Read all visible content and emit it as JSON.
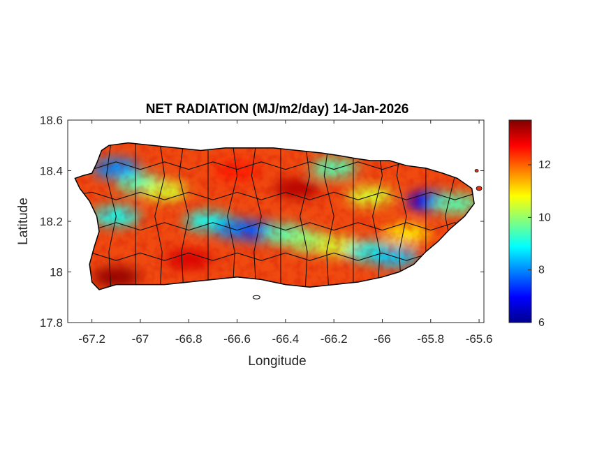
{
  "chart_data": {
    "type": "heatmap",
    "title": "NET RADIATION (MJ/m2/day) 14-Jan-2026",
    "xlabel": "Longitude",
    "ylabel": "Latitude",
    "xlim": [
      -67.3,
      -65.58
    ],
    "ylim": [
      17.8,
      18.6
    ],
    "xticks": [
      -67.2,
      -67.0,
      -66.8,
      -66.6,
      -66.4,
      -66.2,
      -66.0,
      -65.8,
      -65.6
    ],
    "xtick_labels": [
      "-67.2",
      "-67",
      "-66.8",
      "-66.6",
      "-66.4",
      "-66.2",
      "-66",
      "-65.8",
      "-65.6"
    ],
    "yticks": [
      17.8,
      18.0,
      18.2,
      18.4,
      18.6
    ],
    "ytick_labels": [
      "17.8",
      "18",
      "18.2",
      "18.4",
      "18.6"
    ],
    "colorbar": {
      "colormap": "jet",
      "range": [
        6,
        13.7
      ],
      "ticks": [
        6,
        8,
        10,
        12
      ],
      "tick_labels": [
        "6",
        "8",
        "10",
        "12"
      ]
    },
    "region": "Puerto Rico municipalities",
    "outline": [
      [
        -67.27,
        18.37
      ],
      [
        -67.24,
        18.38
      ],
      [
        -67.2,
        18.39
      ],
      [
        -67.18,
        18.43
      ],
      [
        -67.16,
        18.48
      ],
      [
        -67.13,
        18.5
      ],
      [
        -67.05,
        18.51
      ],
      [
        -66.95,
        18.5
      ],
      [
        -66.85,
        18.49
      ],
      [
        -66.75,
        18.48
      ],
      [
        -66.65,
        18.49
      ],
      [
        -66.55,
        18.49
      ],
      [
        -66.45,
        18.49
      ],
      [
        -66.35,
        18.48
      ],
      [
        -66.25,
        18.47
      ],
      [
        -66.18,
        18.46
      ],
      [
        -66.12,
        18.45
      ],
      [
        -66.05,
        18.44
      ],
      [
        -65.97,
        18.44
      ],
      [
        -65.9,
        18.42
      ],
      [
        -65.82,
        18.41
      ],
      [
        -65.75,
        18.39
      ],
      [
        -65.69,
        18.37
      ],
      [
        -65.63,
        18.33
      ],
      [
        -65.62,
        18.27
      ],
      [
        -65.66,
        18.22
      ],
      [
        -65.72,
        18.17
      ],
      [
        -65.77,
        18.12
      ],
      [
        -65.82,
        18.08
      ],
      [
        -65.87,
        18.03
      ],
      [
        -65.93,
        18.0
      ],
      [
        -66.0,
        17.98
      ],
      [
        -66.1,
        17.96
      ],
      [
        -66.2,
        17.95
      ],
      [
        -66.3,
        17.94
      ],
      [
        -66.4,
        17.95
      ],
      [
        -66.5,
        17.97
      ],
      [
        -66.6,
        17.98
      ],
      [
        -66.7,
        17.97
      ],
      [
        -66.8,
        17.96
      ],
      [
        -66.9,
        17.95
      ],
      [
        -67.0,
        17.95
      ],
      [
        -67.1,
        17.95
      ],
      [
        -67.17,
        17.93
      ],
      [
        -67.2,
        17.96
      ],
      [
        -67.21,
        18.03
      ],
      [
        -67.19,
        18.1
      ],
      [
        -67.17,
        18.16
      ],
      [
        -67.18,
        18.22
      ],
      [
        -67.21,
        18.28
      ],
      [
        -67.25,
        18.33
      ]
    ],
    "radiation_bands": [
      {
        "lon": -67.1,
        "lat": 18.41,
        "value": 8.0
      },
      {
        "lon": -67.0,
        "lat": 18.35,
        "value": 9.5
      },
      {
        "lon": -67.1,
        "lat": 18.22,
        "value": 9.0
      },
      {
        "lon": -66.9,
        "lat": 18.32,
        "value": 10.5
      },
      {
        "lon": -66.72,
        "lat": 18.2,
        "value": 9.0
      },
      {
        "lon": -66.6,
        "lat": 18.17,
        "value": 8.0
      },
      {
        "lon": -66.5,
        "lat": 18.16,
        "value": 7.5
      },
      {
        "lon": -66.4,
        "lat": 18.15,
        "value": 9.5
      },
      {
        "lon": -66.3,
        "lat": 18.12,
        "value": 10.0
      },
      {
        "lon": -66.18,
        "lat": 18.1,
        "value": 10.5
      },
      {
        "lon": -66.05,
        "lat": 18.08,
        "value": 9.0
      },
      {
        "lon": -65.95,
        "lat": 18.06,
        "value": 8.5
      },
      {
        "lon": -65.8,
        "lat": 18.28,
        "value": 7.0
      },
      {
        "lon": -65.7,
        "lat": 18.27,
        "value": 9.5
      },
      {
        "lon": -66.2,
        "lat": 18.41,
        "value": 9.5
      },
      {
        "lon": -66.05,
        "lat": 18.3,
        "value": 10.5
      },
      {
        "lon": -66.35,
        "lat": 18.33,
        "value": 13.3
      },
      {
        "lon": -67.1,
        "lat": 17.98,
        "value": 13.6
      },
      {
        "lon": -66.8,
        "lat": 18.05,
        "value": 13.0
      },
      {
        "lon": -66.6,
        "lat": 18.4,
        "value": 12.5
      },
      {
        "lon": -65.9,
        "lat": 18.15,
        "value": 11.0
      }
    ]
  }
}
